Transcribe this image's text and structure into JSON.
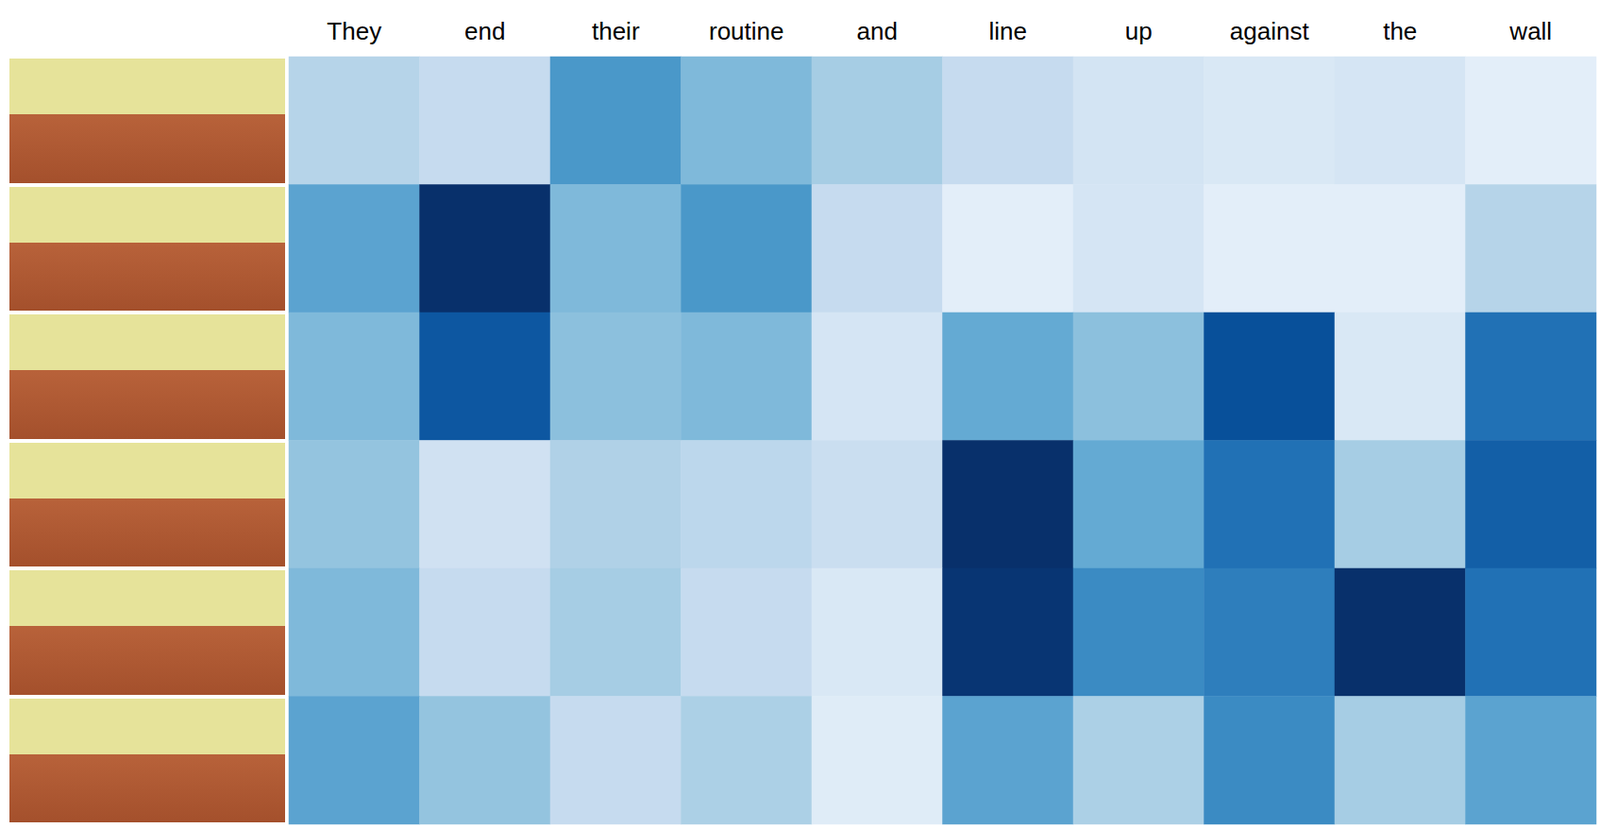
{
  "chart_data": {
    "type": "heatmap",
    "categories": [
      "They",
      "end",
      "their",
      "routine",
      "and",
      "line",
      "up",
      "against",
      "the",
      "wall"
    ],
    "rows": 6,
    "cells": [
      [
        0.3,
        0.25,
        0.6,
        0.45,
        0.35,
        0.25,
        0.18,
        0.15,
        0.17,
        0.1
      ],
      [
        0.55,
        1.0,
        0.45,
        0.6,
        0.25,
        0.1,
        0.17,
        0.1,
        0.1,
        0.3
      ],
      [
        0.45,
        0.85,
        0.42,
        0.45,
        0.17,
        0.52,
        0.42,
        0.88,
        0.15,
        0.75
      ],
      [
        0.4,
        0.2,
        0.32,
        0.28,
        0.23,
        1.0,
        0.52,
        0.75,
        0.35,
        0.82
      ],
      [
        0.45,
        0.25,
        0.35,
        0.25,
        0.15,
        0.98,
        0.65,
        0.7,
        1.0,
        0.75
      ],
      [
        0.55,
        0.4,
        0.25,
        0.33,
        0.12,
        0.55,
        0.33,
        0.65,
        0.35,
        0.55
      ]
    ],
    "color_range": [
      0,
      1
    ],
    "tick_labels": "x"
  }
}
